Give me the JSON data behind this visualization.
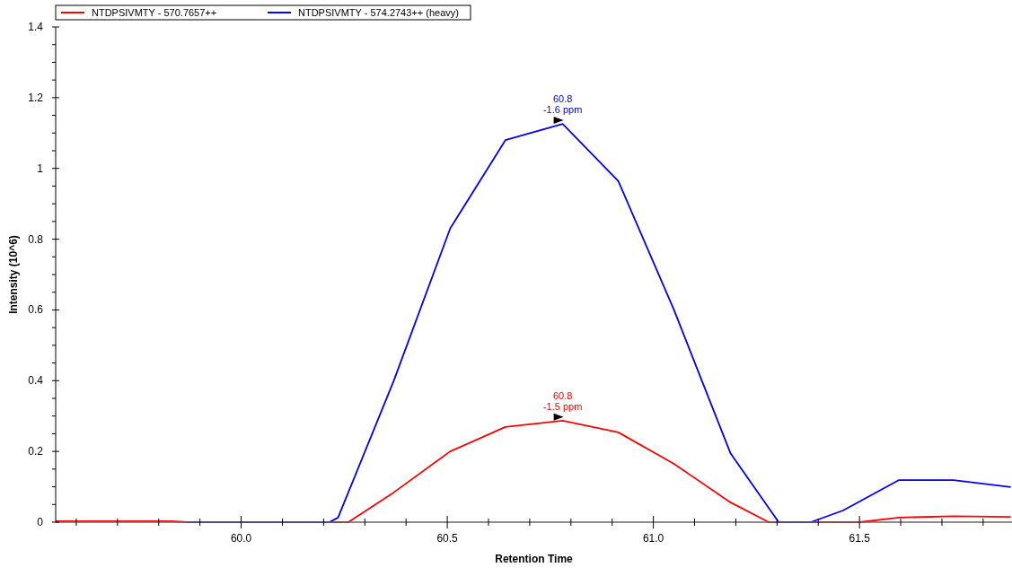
{
  "chart_data": {
    "type": "line",
    "xlabel": "Retention Time",
    "ylabel": "Intensity (10^6)",
    "legend": "top",
    "marker": "none",
    "line_style": "solid",
    "xlim": [
      59.55,
      61.87
    ],
    "xticks": [
      {
        "value": 59.6,
        "label": null
      },
      {
        "value": 59.7,
        "label": null
      },
      {
        "value": 59.8,
        "label": null
      },
      {
        "value": 59.9,
        "label": null
      },
      {
        "value": 60,
        "label": "60.0"
      },
      {
        "value": 60.1,
        "label": null
      },
      {
        "value": 60.2,
        "label": null
      },
      {
        "value": 60.3,
        "label": null
      },
      {
        "value": 60.4,
        "label": null
      },
      {
        "value": 60.5,
        "label": "60.5"
      },
      {
        "value": 60.6,
        "label": null
      },
      {
        "value": 60.7,
        "label": null
      },
      {
        "value": 60.8,
        "label": null
      },
      {
        "value": 60.9,
        "label": null
      },
      {
        "value": 61,
        "label": "61.0"
      },
      {
        "value": 61.1,
        "label": null
      },
      {
        "value": 61.2,
        "label": null
      },
      {
        "value": 61.3,
        "label": null
      },
      {
        "value": 61.4,
        "label": null
      },
      {
        "value": 61.5,
        "label": "61.5"
      },
      {
        "value": 61.6,
        "label": null
      },
      {
        "value": 61.7,
        "label": null
      },
      {
        "value": 61.8,
        "label": null
      }
    ],
    "ylim": [
      0,
      1.4
    ],
    "yticks": [
      0,
      {
        "value": 0.05,
        "label": null
      },
      {
        "value": 0.1,
        "label": null
      },
      {
        "value": 0.15,
        "label": null
      },
      0.2,
      {
        "value": 0.25,
        "label": null
      },
      {
        "value": 0.3,
        "label": null
      },
      {
        "value": 0.35,
        "label": null
      },
      0.4,
      {
        "value": 0.45,
        "label": null
      },
      {
        "value": 0.5,
        "label": null
      },
      {
        "value": 0.55,
        "label": null
      },
      0.6,
      {
        "value": 0.65,
        "label": null
      },
      {
        "value": 0.7,
        "label": null
      },
      {
        "value": 0.75,
        "label": null
      },
      0.8,
      {
        "value": 0.85,
        "label": null
      },
      {
        "value": 0.9,
        "label": null
      },
      {
        "value": 0.95,
        "label": null
      },
      1,
      {
        "value": 1.05,
        "label": null
      },
      {
        "value": 1.1,
        "label": null
      },
      {
        "value": 1.15,
        "label": null
      },
      1.2,
      {
        "value": 1.25,
        "label": null
      },
      {
        "value": 1.3,
        "label": null
      },
      {
        "value": 1.35,
        "label": null
      },
      1.4
    ],
    "series": [
      {
        "name": "NTDPSIVMTY - 570.7657++",
        "color": "#ff0000",
        "x": [
          59.55,
          59.69,
          59.83,
          59.87,
          60.26,
          60.37,
          60.507,
          60.641,
          60.78,
          60.915,
          61.05,
          61.187,
          61.28,
          61.5,
          61.596,
          61.728,
          61.867
        ],
        "values": [
          0.003,
          0.003,
          0.003,
          0,
          0,
          0.084,
          0.2,
          0.269,
          0.287,
          0.254,
          0.165,
          0.056,
          0,
          0,
          0.013,
          0.017,
          0.015
        ]
      },
      {
        "name": "NTDPSIVMTY - 574.2743++ (heavy)",
        "color": "#0000ff",
        "x": [
          59.87,
          60.214,
          60.235,
          60.37,
          60.507,
          60.641,
          60.78,
          60.915,
          61.05,
          61.187,
          61.304,
          61.382,
          61.46,
          61.596,
          61.728,
          61.867
        ],
        "values": [
          0,
          0,
          0.013,
          0.399,
          0.83,
          1.08,
          1.126,
          0.964,
          0.6,
          0.195,
          0,
          0,
          0.033,
          0.119,
          0.119,
          0.099
        ]
      }
    ],
    "annotations": [
      {
        "text": "60.8\n-1.5 ppm",
        "x": 60.78,
        "y": 0.287
      },
      {
        "text": "60.8\n-1.6 ppm",
        "x": 60.78,
        "y": 1.126
      }
    ]
  }
}
